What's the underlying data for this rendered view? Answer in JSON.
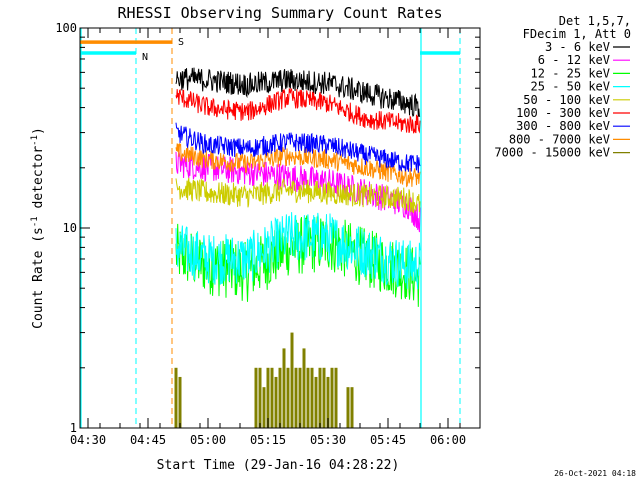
{
  "chart_data": {
    "type": "line",
    "title": "RHESSI Observing Summary Count Rates",
    "xlabel": "Start Time (29-Jan-16 04:28:22)",
    "ylabel_parts": [
      "Count Rate (s",
      "-1",
      " detector",
      "-1",
      ")"
    ],
    "ylabel": "Count Rate (s-1 detector-1)",
    "yscale": "log",
    "ylim": [
      1,
      100
    ],
    "y_ticks": [
      1,
      10,
      100
    ],
    "y_tick_labels": [
      "1",
      "10",
      "100"
    ],
    "x_range_minutes": [
      "04:28",
      "06:08"
    ],
    "x_ticks": [
      "04:30",
      "04:45",
      "05:00",
      "05:15",
      "05:30",
      "05:45",
      "06:00"
    ],
    "grid": false,
    "legend_position": "top-right",
    "legend_header": [
      "Det 1,5,7,",
      "FDecim 1, Att 0"
    ],
    "series": [
      {
        "name": "3 - 6 keV",
        "color": "#000000",
        "start": "04:52",
        "end": "05:53",
        "points": [
          [
            "04:52",
            56
          ],
          [
            "05:00",
            55
          ],
          [
            "05:10",
            52
          ],
          [
            "05:20",
            55
          ],
          [
            "05:30",
            53
          ],
          [
            "05:40",
            47
          ],
          [
            "05:50",
            42
          ],
          [
            "05:53",
            40
          ]
        ],
        "jitter": 0.06
      },
      {
        "name": "6 - 12 keV",
        "color": "#ff00ff",
        "start": "04:52",
        "end": "05:53",
        "points": [
          [
            "04:52",
            21
          ],
          [
            "05:00",
            20
          ],
          [
            "05:10",
            19
          ],
          [
            "05:20",
            18
          ],
          [
            "05:30",
            17
          ],
          [
            "05:40",
            15
          ],
          [
            "05:50",
            13
          ],
          [
            "05:53",
            11
          ]
        ],
        "jitter": 0.07
      },
      {
        "name": "12 - 25 keV",
        "color": "#00ff00",
        "start": "04:52",
        "end": "05:53",
        "points": [
          [
            "04:52",
            7.5
          ],
          [
            "05:00",
            6.5
          ],
          [
            "05:10",
            6
          ],
          [
            "05:20",
            8
          ],
          [
            "05:30",
            8.5
          ],
          [
            "05:40",
            7
          ],
          [
            "05:50",
            6
          ],
          [
            "05:53",
            5.5
          ]
        ],
        "jitter": 0.15
      },
      {
        "name": "25 - 50 keV",
        "color": "#00ffff",
        "start": "04:52",
        "end": "05:53",
        "points": [
          [
            "04:52",
            8
          ],
          [
            "05:00",
            7
          ],
          [
            "05:10",
            7
          ],
          [
            "05:20",
            9
          ],
          [
            "05:30",
            9
          ],
          [
            "05:40",
            7.5
          ],
          [
            "05:50",
            6.5
          ],
          [
            "05:53",
            6.5
          ]
        ],
        "jitter": 0.13
      },
      {
        "name": "50 - 100 keV",
        "color": "#cccc00",
        "start": "04:52",
        "end": "05:53",
        "points": [
          [
            "04:52",
            16
          ],
          [
            "05:00",
            15
          ],
          [
            "05:10",
            14.5
          ],
          [
            "05:20",
            15.5
          ],
          [
            "05:30",
            15
          ],
          [
            "05:40",
            14.5
          ],
          [
            "05:50",
            14
          ],
          [
            "05:53",
            13
          ]
        ],
        "jitter": 0.06
      },
      {
        "name": "100 - 300 keV",
        "color": "#ff0000",
        "start": "04:52",
        "end": "05:53",
        "points": [
          [
            "04:52",
            46
          ],
          [
            "05:00",
            40
          ],
          [
            "05:10",
            38
          ],
          [
            "05:20",
            45
          ],
          [
            "05:30",
            42
          ],
          [
            "05:40",
            35
          ],
          [
            "05:50",
            33
          ],
          [
            "05:53",
            33
          ]
        ],
        "jitter": 0.05
      },
      {
        "name": "300 - 800 keV",
        "color": "#0000ff",
        "start": "04:52",
        "end": "05:53",
        "points": [
          [
            "04:52",
            30
          ],
          [
            "05:00",
            26
          ],
          [
            "05:10",
            25
          ],
          [
            "05:20",
            27
          ],
          [
            "05:30",
            26
          ],
          [
            "05:40",
            23
          ],
          [
            "05:50",
            21
          ],
          [
            "05:53",
            21
          ]
        ],
        "jitter": 0.05
      },
      {
        "name": "800 - 7000 keV",
        "color": "#ff8c00",
        "start": "04:52",
        "end": "05:53",
        "points": [
          [
            "04:52",
            24
          ],
          [
            "05:00",
            22
          ],
          [
            "05:10",
            21
          ],
          [
            "05:20",
            23
          ],
          [
            "05:30",
            22
          ],
          [
            "05:40",
            20
          ],
          [
            "05:50",
            18
          ],
          [
            "05:53",
            18
          ]
        ],
        "jitter": 0.05
      },
      {
        "name": "7000 - 15000 keV",
        "color": "#808000",
        "start": "04:52",
        "end": "05:53",
        "points": [
          [
            "04:52",
            1
          ],
          [
            "05:53",
            1
          ]
        ],
        "jitter": 0
      }
    ],
    "olive_spikes": [
      {
        "t": "04:52",
        "v": 2.0
      },
      {
        "t": "04:53",
        "v": 1.8
      },
      {
        "t": "05:12",
        "v": 2.0
      },
      {
        "t": "05:13",
        "v": 2.0
      },
      {
        "t": "05:14",
        "v": 1.6
      },
      {
        "t": "05:15",
        "v": 2.0
      },
      {
        "t": "05:16",
        "v": 2.0
      },
      {
        "t": "05:17",
        "v": 1.8
      },
      {
        "t": "05:18",
        "v": 2.0
      },
      {
        "t": "05:19",
        "v": 2.5
      },
      {
        "t": "05:20",
        "v": 2.0
      },
      {
        "t": "05:21",
        "v": 3.0
      },
      {
        "t": "05:22",
        "v": 2.0
      },
      {
        "t": "05:23",
        "v": 2.0
      },
      {
        "t": "05:24",
        "v": 2.5
      },
      {
        "t": "05:25",
        "v": 2.0
      },
      {
        "t": "05:26",
        "v": 2.0
      },
      {
        "t": "05:27",
        "v": 1.8
      },
      {
        "t": "05:28",
        "v": 2.0
      },
      {
        "t": "05:29",
        "v": 2.0
      },
      {
        "t": "05:30",
        "v": 1.8
      },
      {
        "t": "05:31",
        "v": 2.0
      },
      {
        "t": "05:32",
        "v": 2.0
      },
      {
        "t": "05:35",
        "v": 1.6
      },
      {
        "t": "05:36",
        "v": 1.6
      }
    ],
    "annotations": {
      "night_lines": [
        "04:42",
        "06:03"
      ],
      "saa_line": "04:51",
      "day_night_bars": [
        {
          "label": "N",
          "color": "#00ffff",
          "segments": [
            [
              "04:28",
              "04:42"
            ],
            [
              "05:53",
              "06:03"
            ]
          ],
          "level": 75
        },
        {
          "label": "S",
          "color": "#ff8c00",
          "segments": [
            [
              "04:28",
              "04:51"
            ]
          ],
          "level": 85
        }
      ],
      "day_boundaries": [
        "04:28",
        "05:53"
      ]
    }
  },
  "footer_timestamp": "26-Oct-2021 04:18"
}
